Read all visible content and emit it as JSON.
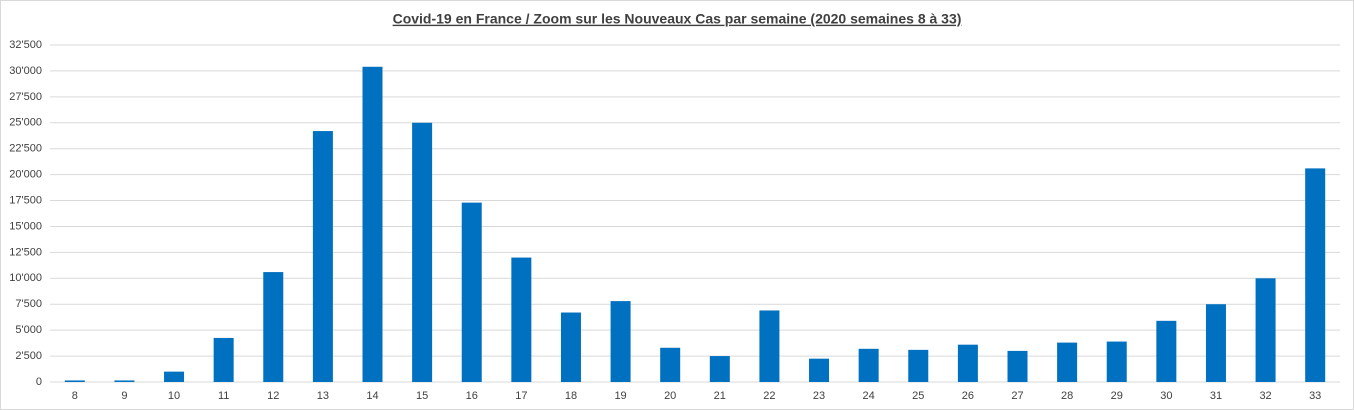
{
  "chart_data": {
    "type": "bar",
    "title": "Covid-19 en France / Zoom  sur les Nouveaux Cas par semaine (2020 semaines 8 à 33)",
    "categories": [
      "8",
      "9",
      "10",
      "11",
      "12",
      "13",
      "14",
      "15",
      "16",
      "17",
      "18",
      "19",
      "20",
      "21",
      "22",
      "23",
      "24",
      "25",
      "26",
      "27",
      "28",
      "29",
      "30",
      "31",
      "32",
      "33"
    ],
    "values": [
      150,
      150,
      1000,
      4250,
      10600,
      24200,
      30400,
      25000,
      17300,
      12000,
      6700,
      7800,
      3300,
      2500,
      6900,
      2250,
      3200,
      3100,
      3600,
      3000,
      3800,
      3900,
      5900,
      7500,
      10000,
      20600
    ],
    "color": "#0070c0",
    "ylim": [
      0,
      32500
    ],
    "yticks": [
      0,
      {
        "value": 2500,
        "label": "2'500"
      },
      {
        "value": 5000,
        "label": "5'000"
      },
      {
        "value": 7500,
        "label": "7'500"
      },
      {
        "value": 10000,
        "label": "10'000"
      },
      {
        "value": 12500,
        "label": "12'500"
      },
      {
        "value": 15000,
        "label": "15'000"
      },
      {
        "value": 17500,
        "label": "17'500"
      },
      {
        "value": 20000,
        "label": "20'000"
      },
      {
        "value": 22500,
        "label": "22'500"
      },
      {
        "value": 25000,
        "label": "25'000"
      },
      {
        "value": 27500,
        "label": "27'500"
      },
      {
        "value": 30000,
        "label": "30'000"
      },
      {
        "value": 32500,
        "label": "32'500"
      }
    ],
    "grid": true
  }
}
